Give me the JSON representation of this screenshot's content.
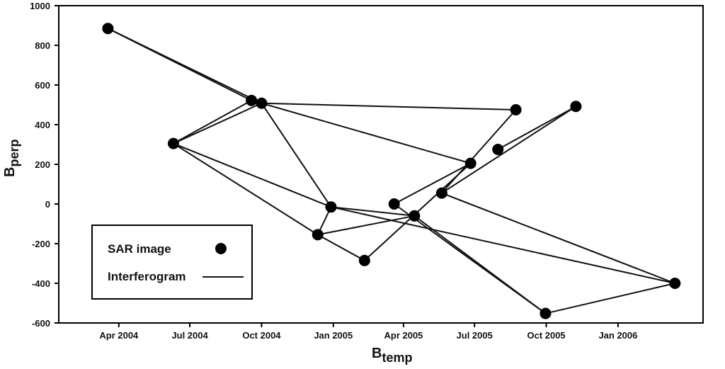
{
  "chart_data": {
    "type": "scatter",
    "xlabel_main": "B",
    "xlabel_sub": "temp",
    "ylabel_main": "B",
    "ylabel_sub": "perp",
    "xlim": [
      "2004-01-15",
      "2006-04-20"
    ],
    "ylim": [
      -600,
      1000
    ],
    "x_ticks": [
      {
        "date": "2004-04-01",
        "label": "Apr 2004"
      },
      {
        "date": "2004-07-01",
        "label": "Jul 2004"
      },
      {
        "date": "2004-10-01",
        "label": "Oct 2004"
      },
      {
        "date": "2005-01-01",
        "label": "Jan 2005"
      },
      {
        "date": "2005-04-01",
        "label": "Apr 2005"
      },
      {
        "date": "2005-07-01",
        "label": "Jul 2005"
      },
      {
        "date": "2005-10-01",
        "label": "Oct 2005"
      },
      {
        "date": "2006-01-01",
        "label": "Jan 2006"
      }
    ],
    "y_ticks": [
      1000,
      800,
      600,
      400,
      200,
      0,
      -200,
      -400,
      -600
    ],
    "points": [
      {
        "id": "A",
        "date": "2004-03-18",
        "y": 885
      },
      {
        "id": "B",
        "date": "2004-06-10",
        "y": 305
      },
      {
        "id": "C",
        "date": "2004-09-18",
        "y": 522
      },
      {
        "id": "D",
        "date": "2004-10-01",
        "y": 508
      },
      {
        "id": "E",
        "date": "2004-12-12",
        "y": -155
      },
      {
        "id": "F",
        "date": "2004-12-29",
        "y": -15
      },
      {
        "id": "G",
        "date": "2005-02-10",
        "y": -285
      },
      {
        "id": "H",
        "date": "2005-03-20",
        "y": 0
      },
      {
        "id": "I",
        "date": "2005-04-15",
        "y": -60
      },
      {
        "id": "J",
        "date": "2005-05-20",
        "y": 55
      },
      {
        "id": "K",
        "date": "2005-06-26",
        "y": 205
      },
      {
        "id": "L",
        "date": "2005-07-31",
        "y": 275
      },
      {
        "id": "M",
        "date": "2005-08-23",
        "y": 475
      },
      {
        "id": "N",
        "date": "2005-09-30",
        "y": -552
      },
      {
        "id": "O",
        "date": "2005-11-08",
        "y": 492
      },
      {
        "id": "P",
        "date": "2006-03-15",
        "y": -400
      }
    ],
    "edges": [
      [
        "A",
        "C"
      ],
      [
        "A",
        "D"
      ],
      [
        "B",
        "C"
      ],
      [
        "B",
        "D"
      ],
      [
        "B",
        "F"
      ],
      [
        "B",
        "E"
      ],
      [
        "D",
        "M"
      ],
      [
        "D",
        "K"
      ],
      [
        "D",
        "F"
      ],
      [
        "E",
        "F"
      ],
      [
        "E",
        "I"
      ],
      [
        "E",
        "G"
      ],
      [
        "F",
        "I"
      ],
      [
        "F",
        "P"
      ],
      [
        "G",
        "K"
      ],
      [
        "H",
        "N"
      ],
      [
        "H",
        "K"
      ],
      [
        "J",
        "P"
      ],
      [
        "J",
        "O"
      ],
      [
        "J",
        "M"
      ],
      [
        "I",
        "N"
      ],
      [
        "L",
        "O"
      ],
      [
        "C",
        "D"
      ],
      [
        "N",
        "P"
      ]
    ],
    "legend": {
      "position": "bottom-left",
      "point_label": "SAR image",
      "line_label": "Interferogram"
    },
    "grid": false,
    "colors": {
      "line": "#111111",
      "marker": "#000000",
      "frame": "#000000"
    }
  }
}
